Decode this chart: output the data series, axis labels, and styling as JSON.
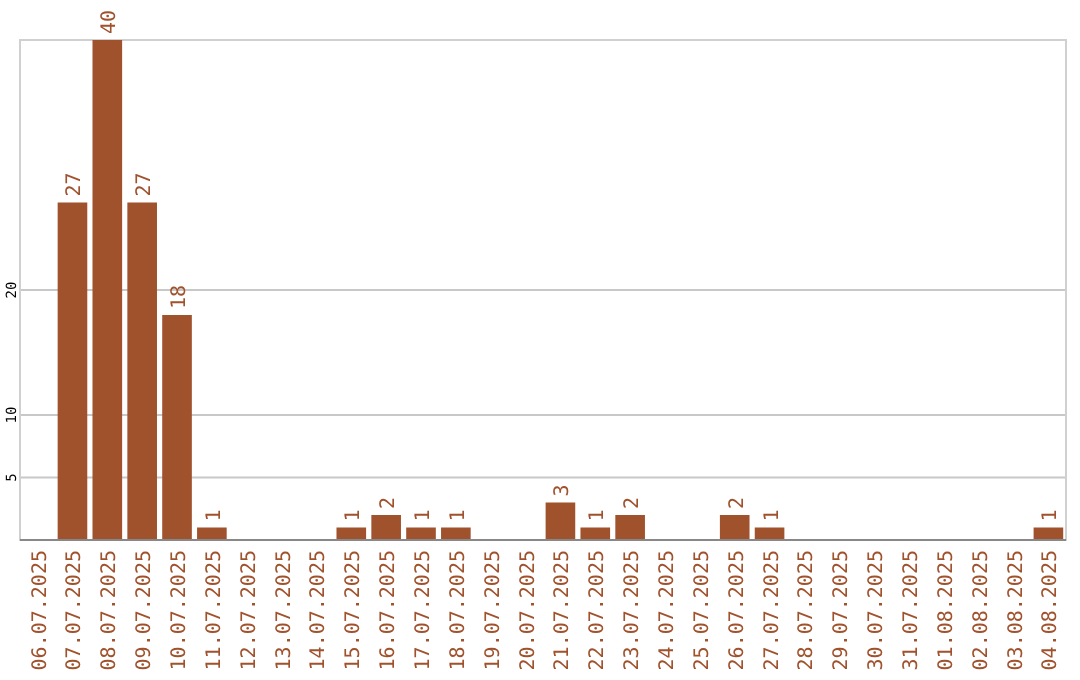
{
  "chart_data": {
    "type": "bar",
    "categories": [
      "06.07.2025",
      "07.07.2025",
      "08.07.2025",
      "09.07.2025",
      "10.07.2025",
      "11.07.2025",
      "12.07.2025",
      "13.07.2025",
      "14.07.2025",
      "15.07.2025",
      "16.07.2025",
      "17.07.2025",
      "18.07.2025",
      "19.07.2025",
      "20.07.2025",
      "21.07.2025",
      "22.07.2025",
      "23.07.2025",
      "24.07.2025",
      "25.07.2025",
      "26.07.2025",
      "27.07.2025",
      "28.07.2025",
      "29.07.2025",
      "30.07.2025",
      "31.07.2025",
      "01.08.2025",
      "02.08.2025",
      "03.08.2025",
      "04.08.2025"
    ],
    "values": [
      0,
      27,
      40,
      27,
      18,
      1,
      0,
      0,
      0,
      1,
      2,
      1,
      1,
      0,
      0,
      3,
      1,
      2,
      0,
      0,
      2,
      1,
      0,
      0,
      0,
      0,
      0,
      0,
      0,
      1
    ],
    "value_labels": [
      null,
      "27",
      "40",
      "27",
      "18",
      "1",
      null,
      null,
      null,
      "1",
      "2",
      "1",
      "1",
      null,
      null,
      "3",
      "1",
      "2",
      null,
      null,
      "2",
      "1",
      null,
      null,
      null,
      null,
      null,
      null,
      null,
      "1"
    ],
    "color": "#a0522d",
    "ylim": [
      0,
      40
    ],
    "yticks": [
      5,
      10,
      20
    ],
    "grid": "y"
  }
}
